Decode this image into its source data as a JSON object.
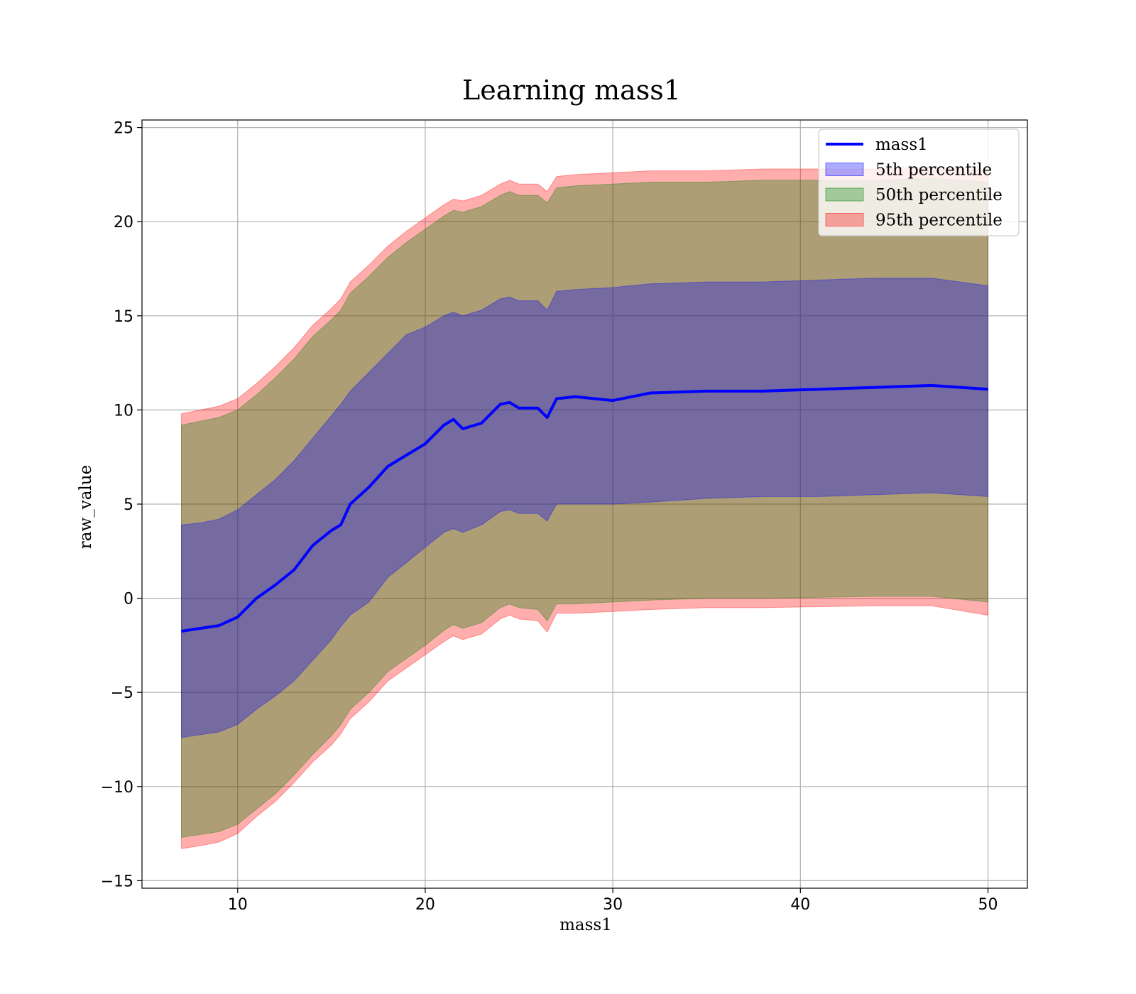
{
  "chart_data": {
    "type": "area",
    "title": "Learning mass1",
    "xlabel": "mass1",
    "ylabel": "raw_value",
    "xlim": [
      4.9,
      52.1
    ],
    "ylim": [
      -15.4,
      25.4
    ],
    "xticks": [
      10,
      20,
      30,
      40,
      50
    ],
    "yticks": [
      -15,
      -10,
      -5,
      0,
      5,
      10,
      15,
      20,
      25
    ],
    "xtick_labels": [
      "10",
      "20",
      "30",
      "40",
      "50"
    ],
    "ytick_labels": [
      "−15",
      "−10",
      "−5",
      "0",
      "5",
      "10",
      "15",
      "20",
      "25"
    ],
    "grid": true,
    "legend_position": "upper right",
    "x": [
      7,
      8,
      9,
      10,
      11,
      12,
      13,
      14,
      15,
      15.5,
      16,
      17,
      18,
      19,
      20,
      21,
      21.5,
      22,
      23,
      24,
      24.5,
      25,
      26,
      26.5,
      27,
      28,
      30,
      32,
      35,
      38,
      41,
      44,
      47,
      50
    ],
    "series": [
      {
        "name": "mass1",
        "kind": "line",
        "color": "#0000ff",
        "values": [
          -1.75,
          -1.6,
          -1.45,
          -1.0,
          0.0,
          0.7,
          1.5,
          2.8,
          3.6,
          3.9,
          5.0,
          5.9,
          7.0,
          7.6,
          8.2,
          9.2,
          9.5,
          9.0,
          9.3,
          10.3,
          10.4,
          10.1,
          10.1,
          9.6,
          10.6,
          10.7,
          10.5,
          10.9,
          11.0,
          11.0,
          11.1,
          11.2,
          11.3,
          11.1
        ]
      },
      {
        "name": "5th percentile",
        "kind": "band",
        "color": "#0000ff",
        "lower": [
          -7.4,
          -7.25,
          -7.1,
          -6.7,
          -5.9,
          -5.2,
          -4.4,
          -3.3,
          -2.2,
          -1.5,
          -0.9,
          -0.2,
          1.1,
          1.9,
          2.7,
          3.5,
          3.7,
          3.5,
          3.9,
          4.6,
          4.7,
          4.5,
          4.5,
          4.1,
          5.0,
          5.0,
          5.0,
          5.1,
          5.3,
          5.4,
          5.4,
          5.5,
          5.6,
          5.4
        ],
        "upper": [
          3.9,
          4.0,
          4.2,
          4.7,
          5.5,
          6.3,
          7.3,
          8.5,
          9.7,
          10.3,
          11.0,
          12.0,
          13.0,
          14.0,
          14.4,
          15.0,
          15.2,
          15.0,
          15.3,
          15.9,
          16.0,
          15.8,
          15.8,
          15.3,
          16.3,
          16.4,
          16.5,
          16.7,
          16.8,
          16.8,
          16.9,
          17.0,
          17.0,
          16.6
        ]
      },
      {
        "name": "50th percentile",
        "kind": "band",
        "color": "#008000",
        "lower": [
          -12.7,
          -12.55,
          -12.4,
          -12.0,
          -11.2,
          -10.4,
          -9.4,
          -8.3,
          -7.3,
          -6.7,
          -5.9,
          -5.0,
          -3.9,
          -3.2,
          -2.5,
          -1.7,
          -1.4,
          -1.6,
          -1.3,
          -0.5,
          -0.3,
          -0.5,
          -0.6,
          -1.2,
          -0.3,
          -0.3,
          -0.2,
          -0.1,
          0.0,
          0.0,
          0.05,
          0.1,
          0.1,
          -0.2
        ],
        "upper": [
          9.2,
          9.4,
          9.6,
          10.0,
          10.8,
          11.7,
          12.7,
          13.9,
          14.8,
          15.3,
          16.2,
          17.1,
          18.1,
          18.9,
          19.6,
          20.3,
          20.6,
          20.5,
          20.8,
          21.4,
          21.6,
          21.4,
          21.4,
          21.0,
          21.8,
          21.9,
          22.0,
          22.1,
          22.1,
          22.2,
          22.2,
          22.2,
          22.3,
          22.1
        ]
      },
      {
        "name": "95th percentile",
        "kind": "band",
        "color": "#ff0000",
        "lower": [
          -13.3,
          -13.15,
          -12.95,
          -12.5,
          -11.6,
          -10.8,
          -9.8,
          -8.7,
          -7.8,
          -7.2,
          -6.4,
          -5.5,
          -4.4,
          -3.7,
          -3.0,
          -2.3,
          -2.0,
          -2.2,
          -1.9,
          -1.1,
          -0.9,
          -1.1,
          -1.2,
          -1.8,
          -0.8,
          -0.8,
          -0.7,
          -0.6,
          -0.5,
          -0.5,
          -0.45,
          -0.4,
          -0.4,
          -0.9
        ],
        "upper": [
          9.8,
          10.0,
          10.2,
          10.6,
          11.4,
          12.3,
          13.3,
          14.5,
          15.4,
          15.9,
          16.8,
          17.7,
          18.7,
          19.5,
          20.2,
          20.9,
          21.2,
          21.1,
          21.4,
          22.0,
          22.2,
          22.0,
          22.0,
          21.6,
          22.4,
          22.5,
          22.6,
          22.7,
          22.7,
          22.8,
          22.8,
          22.8,
          22.9,
          22.7
        ]
      }
    ],
    "legend": [
      {
        "label": "mass1"
      },
      {
        "label": "5th percentile"
      },
      {
        "label": "50th percentile"
      },
      {
        "label": "95th percentile"
      }
    ]
  }
}
